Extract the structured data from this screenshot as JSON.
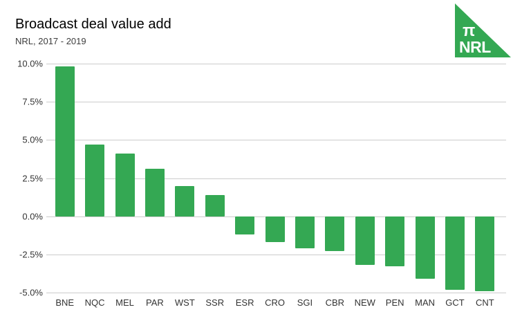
{
  "logo": {
    "pi_symbol": "π",
    "text": "NRL",
    "color": "#34a853",
    "text_color": "#ffffff"
  },
  "chart_data": {
    "type": "bar",
    "title": "Broadcast deal value add",
    "subtitle": "NRL, 2017 - 2019",
    "categories": [
      "BNE",
      "NQC",
      "MEL",
      "PAR",
      "WST",
      "SSR",
      "ESR",
      "CRO",
      "SGI",
      "CBR",
      "NEW",
      "PEN",
      "MAN",
      "GCT",
      "CNT"
    ],
    "values": [
      9.8,
      4.7,
      4.1,
      3.1,
      2.0,
      1.4,
      -1.2,
      -1.7,
      -2.1,
      -2.3,
      -3.2,
      -3.3,
      -4.1,
      -4.8,
      -4.9
    ],
    "value_unit": "%",
    "xlabel": "",
    "ylabel": "",
    "ylim": [
      -5,
      10
    ],
    "y_ticks": [
      10.0,
      7.5,
      5.0,
      2.5,
      0.0,
      -2.5,
      -5.0
    ],
    "y_tick_labels": [
      "10.0%",
      "7.5%",
      "5.0%",
      "2.5%",
      "0.0%",
      "-2.5%",
      "-5.0%"
    ],
    "grid": true,
    "gridline_color": "#cccccc",
    "bar_color": "#34a853",
    "background_color": "#ffffff",
    "legend": "none"
  }
}
